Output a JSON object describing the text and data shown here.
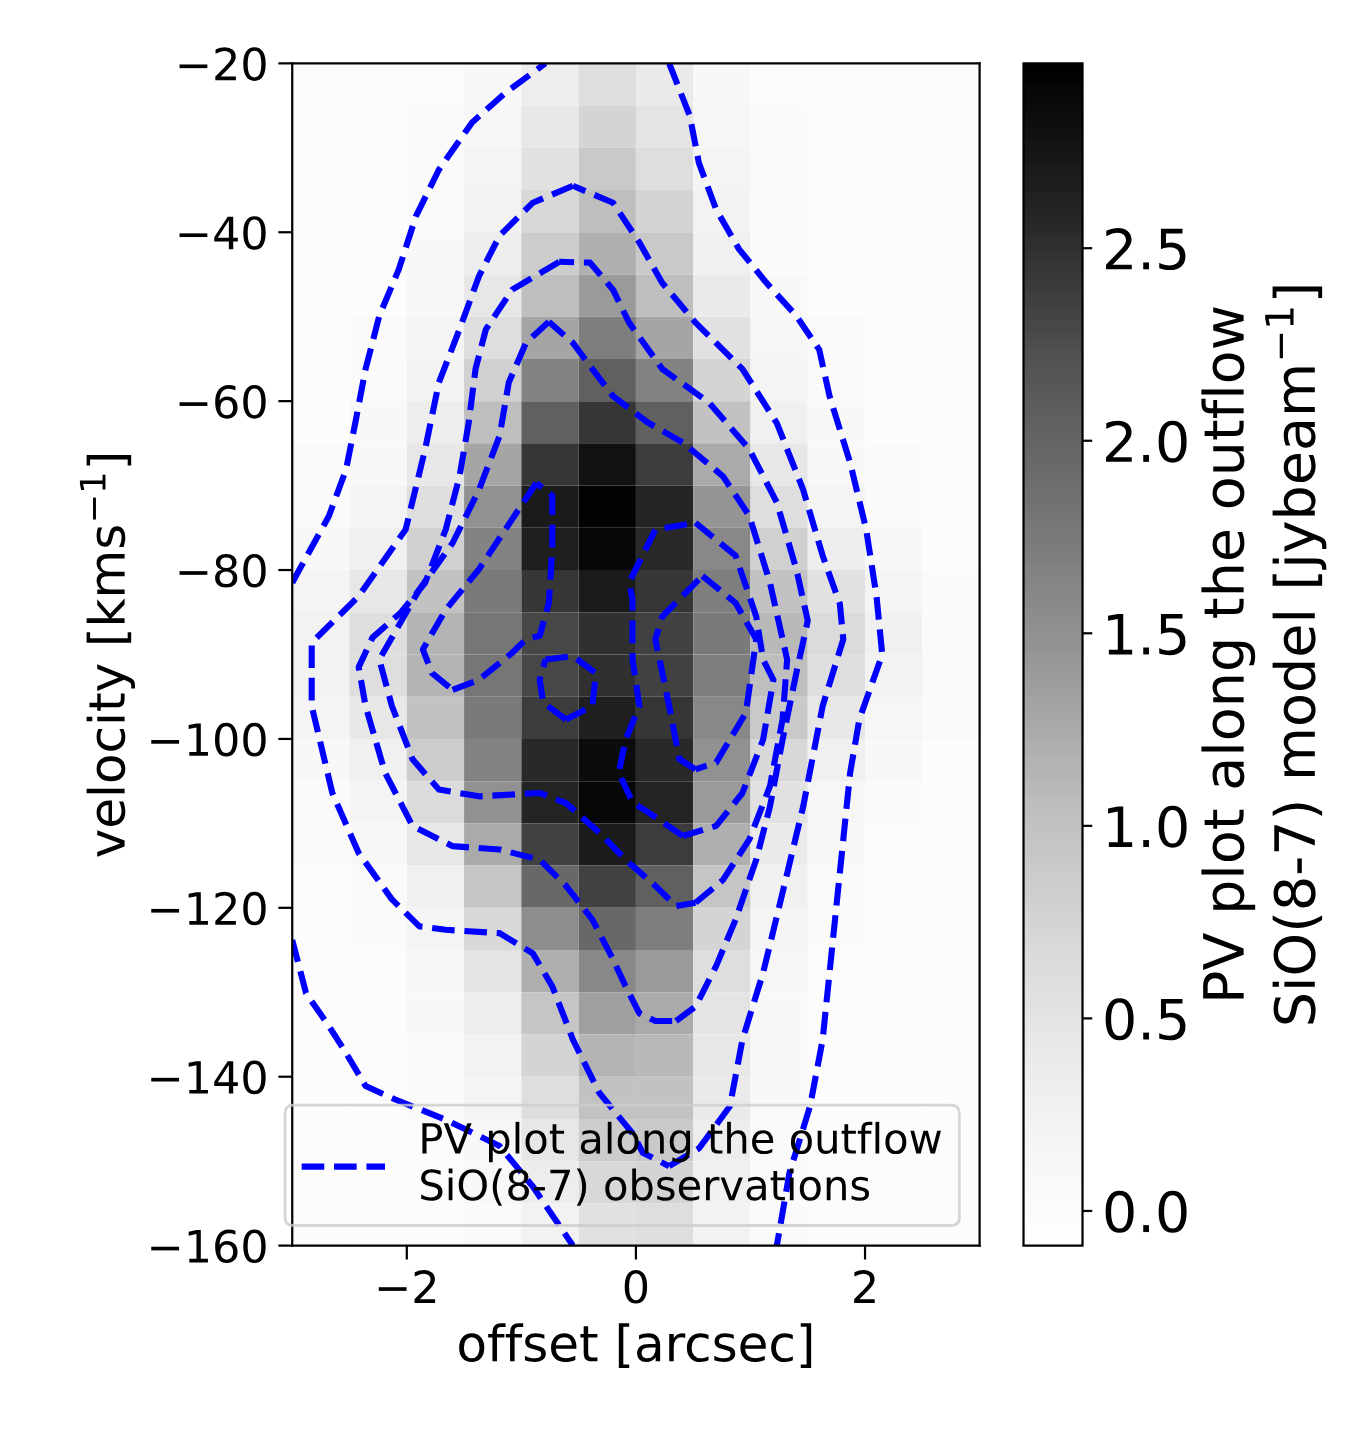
{
  "chart_data": {
    "type": "heatmap",
    "xlabel": "offset [arcsec]",
    "ylabel": "velocity [kms$^{−1}$]",
    "clabel": "PV plot along the outflow\nSiO(8-7) model [jybeam$^{−1}$]",
    "xlim": [
      -3,
      3
    ],
    "ylim": [
      -160,
      -20
    ],
    "xticks": [
      {
        "value": -2,
        "label": "−2"
      },
      0,
      2
    ],
    "yticks": [
      {
        "value": -20,
        "label": "−20"
      },
      {
        "value": -40,
        "label": "−40"
      },
      {
        "value": -60,
        "label": "−60"
      },
      {
        "value": -80,
        "label": "−80"
      },
      {
        "value": -100,
        "label": "−100"
      },
      {
        "value": -120,
        "label": "−120"
      },
      {
        "value": -140,
        "label": "−140"
      },
      {
        "value": -160,
        "label": "−160"
      }
    ],
    "clim": [
      -0.09,
      2.98
    ],
    "cticks": [
      {
        "value": 0,
        "label": "0.0"
      },
      0.5,
      {
        "value": 1,
        "label": "1.0"
      },
      1.5,
      {
        "value": 2,
        "label": "2.0"
      },
      2.5
    ],
    "x": [
      -2.75,
      -2.25,
      -1.75,
      -1.25,
      -0.75,
      -0.25,
      0.25,
      0.75,
      1.25,
      1.75,
      2.25,
      2.75
    ],
    "y": [
      -22.5,
      -27.5,
      -32.5,
      -37.5,
      -42.5,
      -47.5,
      -52.5,
      -57.5,
      -62.5,
      -67.5,
      -72.5,
      -77.5,
      -82.5,
      -87.5,
      -92.5,
      -97.5,
      -102.5,
      -107.5,
      -112.5,
      -117.5,
      -122.5,
      -127.5,
      -132.5,
      -137.5,
      -142.5,
      -147.5,
      -152.5,
      -157.5
    ],
    "cells": [
      [
        0,
        0,
        0,
        0.1,
        0.35,
        0.6,
        0.4,
        0.1,
        0,
        0,
        0,
        0
      ],
      [
        0,
        0,
        0.05,
        0.15,
        0.45,
        0.75,
        0.5,
        0.15,
        0.05,
        0,
        0,
        0
      ],
      [
        0,
        0,
        0.05,
        0.2,
        0.55,
        0.9,
        0.6,
        0.2,
        0.05,
        0,
        0,
        0
      ],
      [
        0,
        0,
        0.05,
        0.25,
        0.7,
        1.05,
        0.75,
        0.25,
        0.05,
        0,
        0,
        0
      ],
      [
        0,
        0,
        0.1,
        0.35,
        0.85,
        1.2,
        0.9,
        0.3,
        0.05,
        0,
        0,
        0
      ],
      [
        0,
        0,
        0.1,
        0.45,
        1.05,
        1.4,
        1.05,
        0.4,
        0.1,
        0,
        0,
        0
      ],
      [
        0,
        0.05,
        0.2,
        0.6,
        1.3,
        1.7,
        1.3,
        0.55,
        0.15,
        0.05,
        0,
        0
      ],
      [
        0,
        0.05,
        0.25,
        0.8,
        1.65,
        2.05,
        1.65,
        0.75,
        0.2,
        0.05,
        0,
        0
      ],
      [
        0,
        0.1,
        0.35,
        1.05,
        2.05,
        2.45,
        2.05,
        1.0,
        0.3,
        0.1,
        0,
        0
      ],
      [
        0.05,
        0.1,
        0.45,
        1.3,
        2.45,
        2.8,
        2.4,
        1.25,
        0.45,
        0.1,
        0.05,
        0
      ],
      [
        0.05,
        0.2,
        0.6,
        1.5,
        2.7,
        2.95,
        2.6,
        1.45,
        0.6,
        0.2,
        0.05,
        0
      ],
      [
        0.1,
        0.3,
        0.8,
        1.65,
        2.65,
        2.9,
        2.55,
        1.6,
        0.8,
        0.35,
        0.1,
        0
      ],
      [
        0.2,
        0.45,
        1.0,
        1.75,
        2.45,
        2.7,
        2.45,
        1.7,
        1.0,
        0.55,
        0.2,
        0.05
      ],
      [
        0.25,
        0.6,
        1.15,
        1.8,
        2.3,
        2.5,
        2.35,
        1.75,
        1.1,
        0.65,
        0.3,
        0.05
      ],
      [
        0.25,
        0.6,
        1.15,
        1.8,
        2.3,
        2.5,
        2.35,
        1.7,
        1.05,
        0.6,
        0.25,
        0.05
      ],
      [
        0.2,
        0.45,
        1.0,
        1.75,
        2.4,
        2.65,
        2.45,
        1.6,
        0.9,
        0.45,
        0.15,
        0.05
      ],
      [
        0.1,
        0.3,
        0.85,
        1.65,
        2.55,
        2.85,
        2.55,
        1.5,
        0.7,
        0.3,
        0.1,
        0
      ],
      [
        0.05,
        0.2,
        0.65,
        1.5,
        2.6,
        2.9,
        2.6,
        1.4,
        0.55,
        0.15,
        0.05,
        0
      ],
      [
        0.05,
        0.1,
        0.45,
        1.25,
        2.35,
        2.7,
        2.4,
        1.2,
        0.4,
        0.1,
        0,
        0
      ],
      [
        0,
        0.05,
        0.3,
        0.95,
        1.95,
        2.35,
        2.05,
        0.95,
        0.3,
        0.05,
        0,
        0
      ],
      [
        0,
        0.05,
        0.2,
        0.7,
        1.55,
        1.95,
        1.7,
        0.75,
        0.2,
        0.05,
        0,
        0
      ],
      [
        0,
        0,
        0.1,
        0.5,
        1.2,
        1.6,
        1.4,
        0.6,
        0.15,
        0,
        0,
        0
      ],
      [
        0,
        0,
        0.1,
        0.35,
        0.95,
        1.35,
        1.25,
        0.5,
        0.1,
        0,
        0,
        0
      ],
      [
        0,
        0,
        0.05,
        0.25,
        0.75,
        1.15,
        1.1,
        0.45,
        0.1,
        0,
        0,
        0
      ],
      [
        0,
        0,
        0.05,
        0.2,
        0.6,
        1.0,
        1.0,
        0.4,
        0.1,
        0,
        0,
        0
      ],
      [
        0,
        0,
        0,
        0.1,
        0.45,
        0.85,
        0.9,
        0.35,
        0.05,
        0,
        0,
        0
      ],
      [
        0,
        0,
        0,
        0.1,
        0.35,
        0.7,
        0.75,
        0.3,
        0.05,
        0,
        0,
        0
      ],
      [
        0,
        0,
        0,
        0.05,
        0.25,
        0.55,
        0.6,
        0.25,
        0.05,
        0,
        0,
        0
      ]
    ],
    "line_style": "dashed",
    "legend": "bottom",
    "series": [
      {
        "type": "line",
        "name": "PV plot along the outflow\nSiO(8-7) observations",
        "color": "#0000ff",
        "x": [
          -3.0,
          -2.68,
          -2.53,
          -2.45,
          -2.36,
          -2.24,
          -2.07,
          -1.92,
          -1.72,
          -1.43,
          -1.14,
          -0.79
        ],
        "values": [
          -81.5,
          -73.6,
          -68.1,
          -62.6,
          -56.2,
          -49.9,
          -44.4,
          -38.1,
          -32.6,
          -27.0,
          -23.5,
          -20.0
        ]
      },
      {
        "type": "line",
        "color": "#0000ff",
        "x": [
          0.29,
          0.47,
          0.55,
          0.7,
          0.9,
          1.14,
          1.4,
          1.6,
          1.69,
          1.87,
          2.01,
          2.1,
          2.15,
          1.95,
          1.87,
          1.81,
          1.75,
          1.69,
          1.63,
          1.52,
          1.34,
          1.23
        ],
        "values": [
          -20.0,
          -26.2,
          -31.8,
          -37.3,
          -42.0,
          -46.0,
          -49.9,
          -53.9,
          -59.4,
          -67.3,
          -75.2,
          -83.1,
          -90.0,
          -97.7,
          -104.0,
          -111.9,
          -119.8,
          -127.7,
          -135.6,
          -143.5,
          -151.4,
          -160.0
        ]
      },
      {
        "type": "line",
        "color": "#0000ff",
        "x": [
          -3.0,
          -2.88,
          -2.68,
          -2.53,
          -2.36,
          -2.1,
          -1.66,
          -1.19,
          -0.9,
          -0.55
        ],
        "values": [
          -123.8,
          -130.1,
          -134.0,
          -137.2,
          -141.1,
          -142.7,
          -145.1,
          -148.2,
          -153.0,
          -160.0
        ]
      },
      {
        "type": "line",
        "color": "#0000ff",
        "x": [
          -0.55,
          -0.9,
          -1.19,
          -1.37,
          -1.54,
          -1.72,
          -1.84,
          -2.01,
          -2.42,
          -2.83,
          -2.83,
          -2.65,
          -2.42,
          -2.13,
          -1.89,
          -1.66,
          -1.19,
          -0.9,
          -0.73,
          -0.55,
          -0.32,
          -0.03,
          0.06,
          0.29
        ],
        "values": [
          -34.5,
          -36.5,
          -40.4,
          -45.2,
          -51.5,
          -57.8,
          -65.7,
          -75.2,
          -83.1,
          -88.6,
          -96.1,
          -106.4,
          -113.5,
          -119.0,
          -122.2,
          -122.6,
          -123.0,
          -125.4,
          -129.3,
          -135.6,
          -141.9,
          -146.7,
          -149.0,
          -150.6
        ]
      },
      {
        "type": "line",
        "color": "#0000ff",
        "x": [
          0.29,
          0.55,
          0.82,
          0.93,
          1.11,
          1.28,
          1.46,
          1.63,
          1.81,
          1.78,
          1.63,
          1.46,
          1.23,
          0.93,
          0.52,
          0.23,
          0.03,
          -0.2,
          -0.55
        ],
        "values": [
          -150.6,
          -148.5,
          -143.5,
          -135.6,
          -127.7,
          -118.2,
          -108.0,
          -96.1,
          -88.2,
          -84.0,
          -78.3,
          -70.5,
          -62.6,
          -56.2,
          -50.7,
          -46.0,
          -41.2,
          -36.5,
          -34.5
        ]
      },
      {
        "type": "line",
        "color": "#0000ff",
        "x": [
          -0.67,
          -1.08,
          -1.31,
          -1.4,
          -1.46,
          -1.54,
          -1.66,
          -1.84,
          -2.05,
          -2.3,
          -2.42,
          -2.36,
          -2.19,
          -1.95,
          -1.6,
          -1.19,
          -0.84,
          -0.61,
          -0.38,
          -0.2,
          -0.09,
          0.03,
          0.17,
          0.35
        ],
        "values": [
          -43.5,
          -46.8,
          -51.5,
          -56.2,
          -62.6,
          -68.9,
          -75.2,
          -81.5,
          -85.0,
          -88.0,
          -91.5,
          -96.1,
          -104.0,
          -110.3,
          -112.7,
          -113.1,
          -114.3,
          -117.4,
          -121.4,
          -126.1,
          -129.3,
          -132.5,
          -133.4,
          -133.4
        ]
      },
      {
        "type": "line",
        "color": "#0000ff",
        "x": [
          0.35,
          0.52,
          0.7,
          0.87,
          1.05,
          1.17,
          1.28,
          1.4,
          1.5,
          1.4,
          1.23,
          0.99,
          0.64,
          0.23,
          -0.06,
          -0.2,
          -0.4,
          -0.67
        ],
        "values": [
          -133.4,
          -131.7,
          -126.9,
          -121.4,
          -114.3,
          -108.0,
          -100.1,
          -92.2,
          -86.0,
          -79.9,
          -72.0,
          -65.7,
          -60.2,
          -56.2,
          -50.7,
          -46.8,
          -43.6,
          -43.5
        ]
      },
      {
        "type": "line",
        "color": "#0000ff",
        "x": [
          -0.76,
          -0.96,
          -1.11,
          -1.19,
          -1.37,
          -1.6,
          -1.89,
          -2.24,
          -2.13,
          -1.95,
          -1.72,
          -1.37,
          -0.84,
          -0.61,
          -0.32,
          -0.09,
          0.17,
          0.35,
          0.52
        ],
        "values": [
          -50.6,
          -53.1,
          -57.8,
          -64.1,
          -70.5,
          -76.8,
          -82.3,
          -90.6,
          -96.1,
          -102.4,
          -106.0,
          -106.8,
          -106.4,
          -107.6,
          -111.1,
          -114.3,
          -117.4,
          -119.8,
          -119.4
        ]
      },
      {
        "type": "line",
        "color": "#0000ff",
        "x": [
          0.52,
          0.76,
          0.99,
          1.17,
          1.28,
          1.32,
          1.17,
          0.99,
          0.76,
          0.41,
          0.1,
          -0.2,
          -0.38,
          -0.55,
          -0.76
        ],
        "values": [
          -119.4,
          -116.7,
          -111.9,
          -105.6,
          -97.7,
          -90.6,
          -81.5,
          -73.6,
          -68.9,
          -64.9,
          -62.5,
          -59.4,
          -56.2,
          -53.1,
          -50.6
        ]
      },
      {
        "type": "line",
        "color": "#0000ff",
        "x": [
          -0.87,
          -1.14,
          -1.37,
          -1.66,
          -1.86,
          -1.78,
          -1.6
        ],
        "values": [
          -69.7,
          -75.2,
          -79.9,
          -84.7,
          -89.4,
          -92.2,
          -94.2
        ]
      },
      {
        "type": "line",
        "color": "#0000ff",
        "x": [
          -1.6,
          -1.37,
          -1.08,
          -0.96,
          -0.84,
          -0.76,
          -0.73,
          -0.73,
          -0.87
        ],
        "values": [
          -94.2,
          -93.0,
          -89.8,
          -88.2,
          -87.8,
          -83.9,
          -77.6,
          -71.2,
          -69.7
        ]
      },
      {
        "type": "line",
        "color": "#0000ff",
        "x": [
          -0.79,
          -0.55,
          -0.35,
          -0.38,
          -0.61
        ],
        "values": [
          -90.6,
          -90.2,
          -92.2,
          -96.1,
          -97.7
        ]
      },
      {
        "type": "line",
        "color": "#0000ff",
        "x": [
          -0.61,
          -0.81,
          -0.84,
          -0.79
        ],
        "values": [
          -97.7,
          -95.7,
          -93.0,
          -90.6
        ]
      },
      {
        "type": "line",
        "color": "#0000ff",
        "x": [
          0.52,
          0.87,
          1.05,
          1.11,
          1.2,
          1.11,
          0.93,
          0.7,
          0.41
        ],
        "values": [
          -74.4,
          -78.3,
          -85.5,
          -90.6,
          -93.0,
          -100.1,
          -106.4,
          -110.3,
          -111.5
        ]
      },
      {
        "type": "line",
        "color": "#0000ff",
        "x": [
          0.41,
          0.12,
          -0.03,
          -0.15,
          -0.09,
          0.03,
          -0.03,
          -0.03,
          -0.06,
          0.17,
          0.52
        ],
        "values": [
          -111.5,
          -108.8,
          -107.5,
          -104.0,
          -100.1,
          -96.1,
          -90.6,
          -83.5,
          -81.5,
          -75.2,
          -74.4
        ]
      },
      {
        "type": "line",
        "color": "#0000ff",
        "x": [
          0.58,
          0.87,
          1.05,
          0.96,
          0.7,
          0.52
        ],
        "values": [
          -80.7,
          -83.9,
          -88.2,
          -96.9,
          -102.8,
          -103.6
        ]
      },
      {
        "type": "line",
        "color": "#0000ff",
        "x": [
          0.52,
          0.38,
          0.29,
          0.17,
          0.23,
          0.58
        ],
        "values": [
          -103.6,
          -102.4,
          -96.1,
          -88.2,
          -85.5,
          -80.7
        ]
      }
    ]
  }
}
